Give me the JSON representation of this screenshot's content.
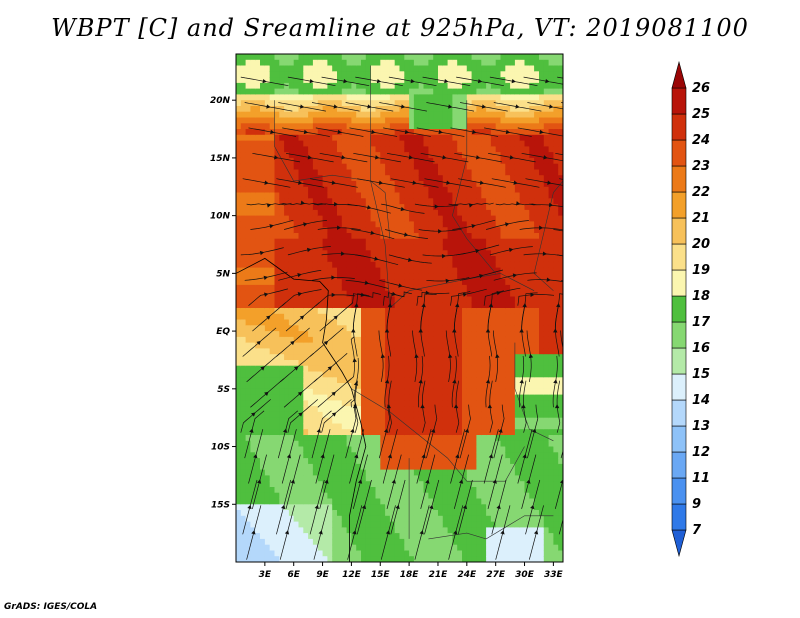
{
  "title": "WBPT [C] and Sreamline at 925hPa, VT: 2019081100",
  "footer": "GrADS: IGES/COLA",
  "map": {
    "variable": "Wet-bulb potential temperature",
    "units": "C",
    "level": "925hPa",
    "valid_time": "2019081100",
    "lon_range": [
      0,
      34
    ],
    "lat_range": [
      -20,
      24
    ],
    "lon_ticks": [
      "3E",
      "6E",
      "9E",
      "12E",
      "15E",
      "18E",
      "21E",
      "24E",
      "27E",
      "30E",
      "33E"
    ],
    "lon_tick_values": [
      3,
      6,
      9,
      12,
      15,
      18,
      21,
      24,
      27,
      30,
      33
    ],
    "lat_ticks": [
      "20N",
      "15N",
      "10N",
      "5N",
      "EQ",
      "5S",
      "10S",
      "15S"
    ],
    "lat_tick_values": [
      20,
      15,
      10,
      5,
      0,
      -5,
      -10,
      -15
    ]
  },
  "colorbar": {
    "labels": [
      "7",
      "9",
      "11",
      "12",
      "13",
      "14",
      "15",
      "16",
      "17",
      "18",
      "19",
      "20",
      "21",
      "22",
      "23",
      "24",
      "25",
      "26"
    ],
    "colors": [
      "#1f5fd6",
      "#2f79e8",
      "#4a91f0",
      "#6aa8f4",
      "#8ec2f8",
      "#b4d8fb",
      "#dcf0fc",
      "#b4eaa8",
      "#86d872",
      "#4fbf3e",
      "#fbf6b0",
      "#fbe08a",
      "#f7c15a",
      "#f3a02a",
      "#ec7a18",
      "#e25412",
      "#d0300c",
      "#b8140a",
      "#9a0606"
    ]
  }
}
